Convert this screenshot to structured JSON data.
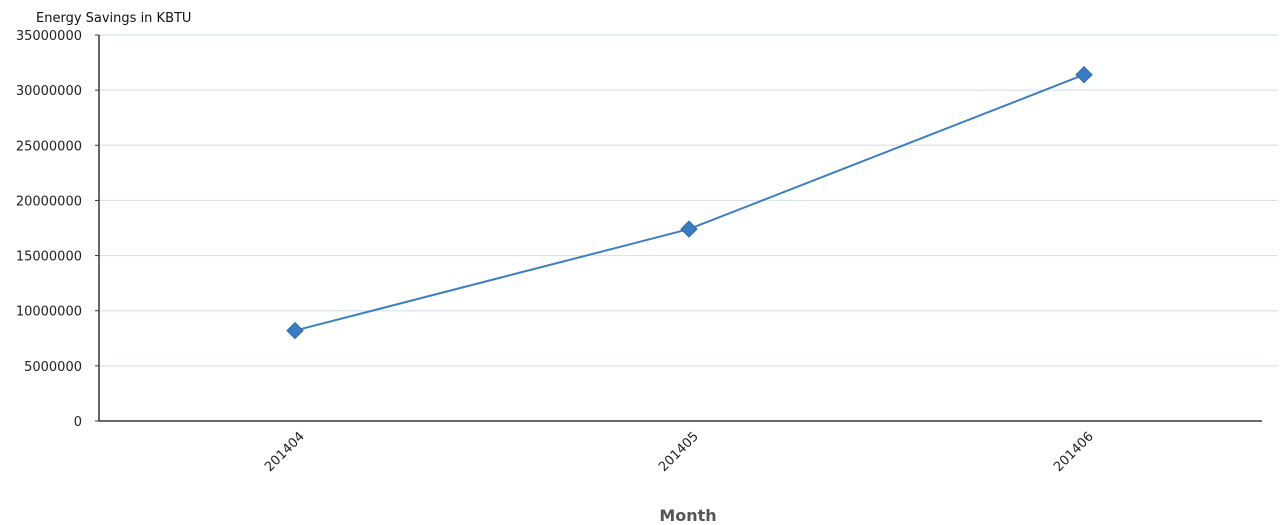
{
  "chart_data": {
    "type": "line",
    "title": "",
    "ylabel": "Energy Savings in KBTU",
    "xlabel": "Month",
    "categories": [
      "201404",
      "201405",
      "201406"
    ],
    "series": [
      {
        "values": [
          8200000,
          17400000,
          31400000
        ],
        "color": "#3a7cc4",
        "marker": "diamond"
      }
    ],
    "ylim": [
      0,
      35000000
    ],
    "yticks": [
      "0",
      "5000000",
      "10000000",
      "15000000",
      "20000000",
      "25000000",
      "30000000",
      "35000000"
    ],
    "grid": true,
    "legend": "none"
  }
}
